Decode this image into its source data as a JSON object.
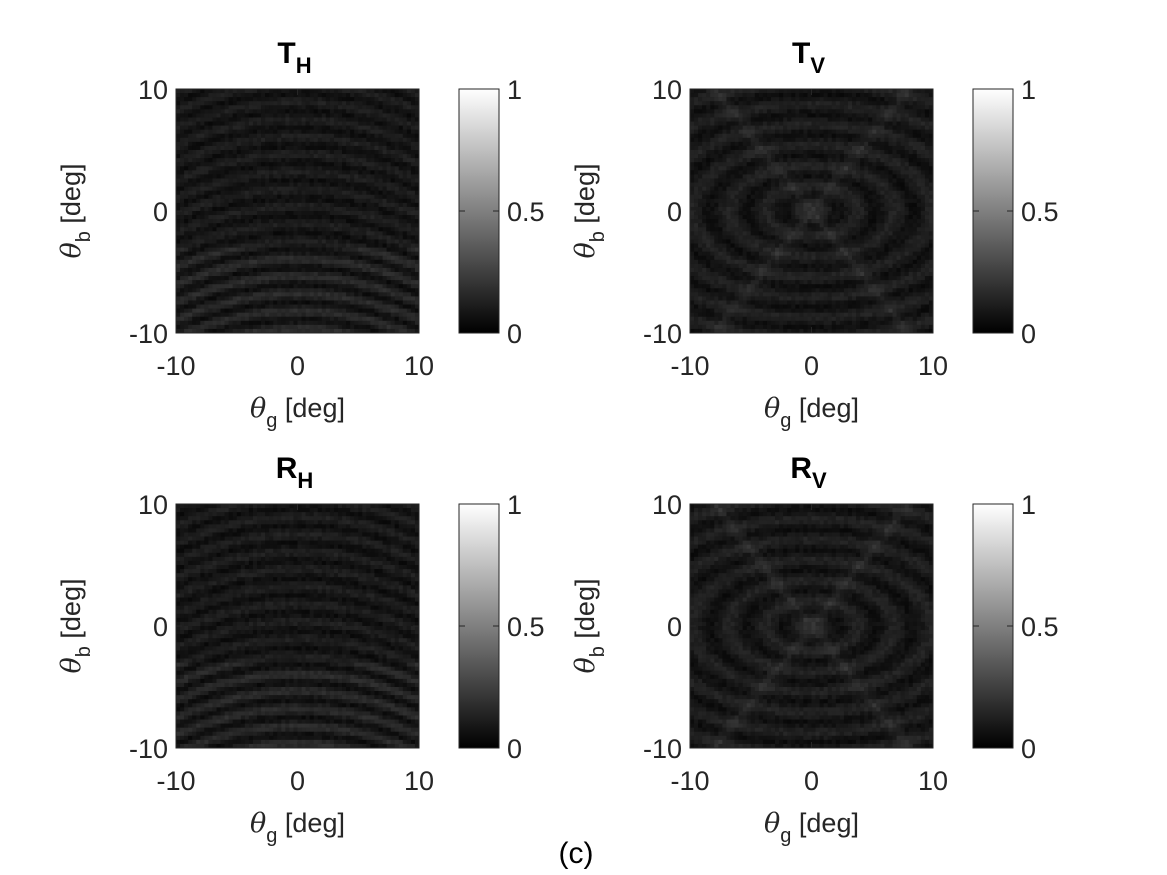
{
  "figure_label": "(c)",
  "chart_data": [
    {
      "type": "heatmap",
      "title_main": "T",
      "title_sub": "H",
      "xlabel_sym": "θ",
      "xlabel_sub": "g",
      "xlabel_unit": "[deg]",
      "ylabel_sym": "θ",
      "ylabel_sub": "b",
      "ylabel_unit": "[deg]",
      "xlim": [
        -10,
        10
      ],
      "ylim": [
        -10,
        10
      ],
      "xticks": [
        "-10",
        "0",
        "10"
      ],
      "yticks": [
        "-10",
        "0",
        "10"
      ],
      "colorbar": {
        "range": [
          0,
          1
        ],
        "ticks": [
          "0",
          "0.5",
          "1"
        ],
        "colormap": "gray"
      },
      "pattern": "horizontal-bands",
      "intensity_typical": 0.08
    },
    {
      "type": "heatmap",
      "title_main": "T",
      "title_sub": "V",
      "xlabel_sym": "θ",
      "xlabel_sub": "g",
      "xlabel_unit": "[deg]",
      "ylabel_sym": "θ",
      "ylabel_sub": "b",
      "ylabel_unit": "[deg]",
      "xlim": [
        -10,
        10
      ],
      "ylim": [
        -10,
        10
      ],
      "xticks": [
        "-10",
        "0",
        "10"
      ],
      "yticks": [
        "-10",
        "0",
        "10"
      ],
      "colorbar": {
        "range": [
          0,
          1
        ],
        "ticks": [
          "0",
          "0.5",
          "1"
        ],
        "colormap": "gray"
      },
      "pattern": "x-cross-bands",
      "intensity_typical": 0.1
    },
    {
      "type": "heatmap",
      "title_main": "R",
      "title_sub": "H",
      "xlabel_sym": "θ",
      "xlabel_sub": "g",
      "xlabel_unit": "[deg]",
      "ylabel_sym": "θ",
      "ylabel_sub": "b",
      "ylabel_unit": "[deg]",
      "xlim": [
        -10,
        10
      ],
      "ylim": [
        -10,
        10
      ],
      "xticks": [
        "-10",
        "0",
        "10"
      ],
      "yticks": [
        "-10",
        "0",
        "10"
      ],
      "colorbar": {
        "range": [
          0,
          1
        ],
        "ticks": [
          "0",
          "0.5",
          "1"
        ],
        "colormap": "gray"
      },
      "pattern": "horizontal-bands",
      "intensity_typical": 0.08
    },
    {
      "type": "heatmap",
      "title_main": "R",
      "title_sub": "V",
      "xlabel_sym": "θ",
      "xlabel_sub": "g",
      "xlabel_unit": "[deg]",
      "ylabel_sym": "θ",
      "ylabel_sub": "b",
      "ylabel_unit": "[deg]",
      "xlim": [
        -10,
        10
      ],
      "ylim": [
        -10,
        10
      ],
      "xticks": [
        "-10",
        "0",
        "10"
      ],
      "yticks": [
        "-10",
        "0",
        "10"
      ],
      "colorbar": {
        "range": [
          0,
          1
        ],
        "ticks": [
          "0",
          "0.5",
          "1"
        ],
        "colormap": "gray"
      },
      "pattern": "x-cross-bands",
      "intensity_typical": 0.1
    }
  ]
}
